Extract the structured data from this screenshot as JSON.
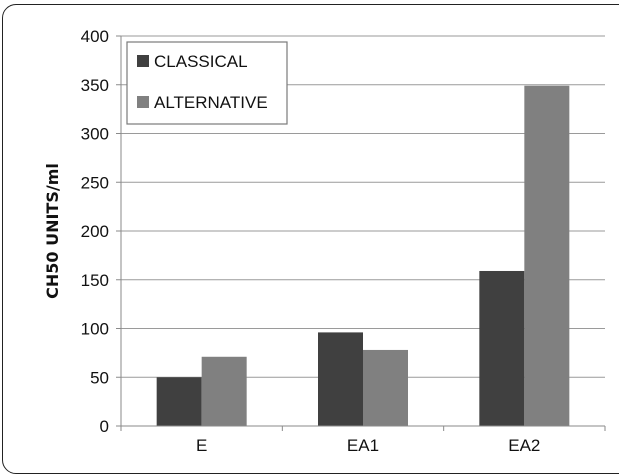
{
  "chart_data": {
    "type": "bar",
    "categories": [
      "E",
      "EA1",
      "EA2"
    ],
    "series": [
      {
        "name": "CLASSICAL",
        "values": [
          50,
          96,
          159
        ],
        "color": "#404040"
      },
      {
        "name": "ALTERNATIVE",
        "values": [
          71,
          78,
          349
        ],
        "color": "#808080"
      }
    ],
    "title": "",
    "xlabel": "",
    "ylabel": "CH50 UNITS/ml",
    "ylim": [
      0,
      400
    ],
    "yticks": [
      0,
      50,
      100,
      150,
      200,
      250,
      300,
      350,
      400
    ],
    "grid": true,
    "legend": "top-left"
  }
}
